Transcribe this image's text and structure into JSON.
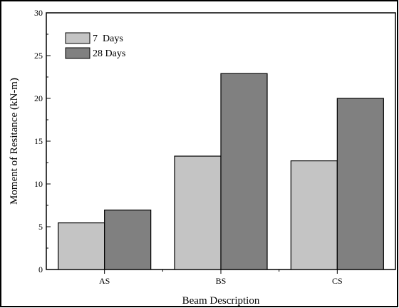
{
  "chart_data": {
    "type": "bar",
    "title": "",
    "xlabel": "Beam Description",
    "ylabel": "Moment of Resitance (kN-m)",
    "categories": [
      "AS",
      "BS",
      "CS"
    ],
    "ylim": [
      0,
      30
    ],
    "yticks": [
      0,
      5,
      10,
      15,
      20,
      25,
      30
    ],
    "series": [
      {
        "name": "7  Days",
        "values": [
          5.45,
          13.25,
          12.7
        ],
        "color": "#c4c4c4"
      },
      {
        "name": "28 Days",
        "values": [
          6.95,
          22.9,
          20.0
        ],
        "color": "#808080"
      }
    ],
    "legend": "top-left",
    "grid": false
  }
}
